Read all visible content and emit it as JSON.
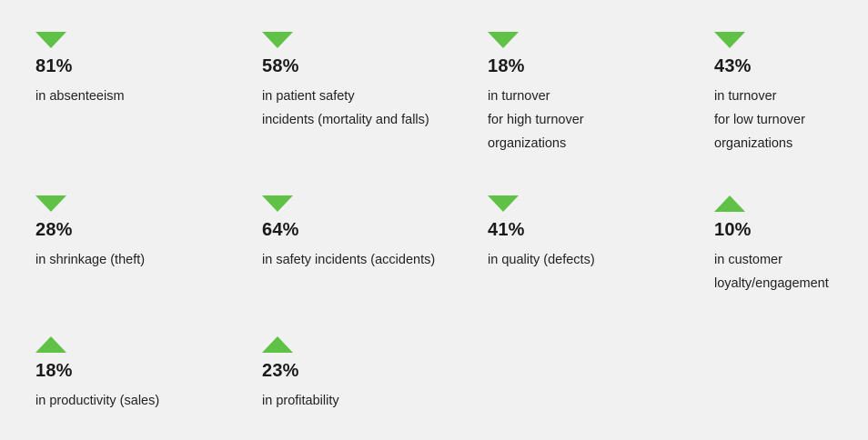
{
  "stats": [
    {
      "direction": "down",
      "value": "81%",
      "label": [
        "in absenteeism"
      ]
    },
    {
      "direction": "down",
      "value": "58%",
      "label": [
        "in patient safety",
        "incidents (mortality and falls)"
      ]
    },
    {
      "direction": "down",
      "value": "18%",
      "label": [
        "in turnover",
        "for high turnover",
        "organizations"
      ]
    },
    {
      "direction": "down",
      "value": "43%",
      "label": [
        "in turnover",
        "for low turnover",
        "organizations"
      ]
    },
    {
      "direction": "down",
      "value": "28%",
      "label": [
        "in shrinkage (theft)"
      ]
    },
    {
      "direction": "down",
      "value": "64%",
      "label": [
        "in safety incidents (accidents)"
      ]
    },
    {
      "direction": "down",
      "value": "41%",
      "label": [
        "in quality (defects)"
      ]
    },
    {
      "direction": "up",
      "value": "10%",
      "label": [
        "in customer",
        "loyalty/engagement"
      ]
    },
    {
      "direction": "up",
      "value": "18%",
      "label": [
        "in productivity (sales)"
      ]
    },
    {
      "direction": "up",
      "value": "23%",
      "label": [
        "in profitability"
      ]
    }
  ],
  "colors": {
    "accent": "#5fc246",
    "background": "#f1f1f1",
    "text": "#1a1a1a"
  },
  "icons": {
    "down": "triangle-down-icon",
    "up": "triangle-up-icon"
  }
}
